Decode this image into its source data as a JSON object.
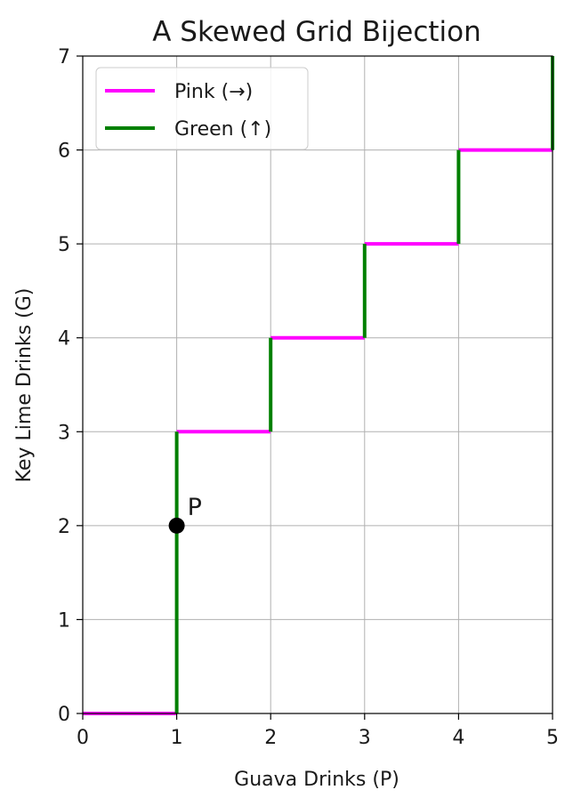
{
  "chart_data": {
    "type": "line",
    "title": "A Skewed Grid Bijection",
    "xlabel": "Guava Drinks (P)",
    "ylabel": "Key Lime Drinks (G)",
    "xlim": [
      0,
      5
    ],
    "ylim": [
      0,
      7
    ],
    "xticks": [
      "0",
      "1",
      "2",
      "3",
      "4",
      "5"
    ],
    "yticks": [
      "0",
      "1",
      "2",
      "3",
      "4",
      "5",
      "6",
      "7"
    ],
    "grid": true,
    "legend_position": "top-left",
    "series": [
      {
        "name": "Pink (→)",
        "color": "#ff00ff",
        "segments": [
          [
            [
              0,
              0
            ],
            [
              1,
              0
            ]
          ],
          [
            [
              1,
              3
            ],
            [
              2,
              3
            ]
          ],
          [
            [
              2,
              4
            ],
            [
              3,
              4
            ]
          ],
          [
            [
              3,
              5
            ],
            [
              4,
              5
            ]
          ],
          [
            [
              4,
              6
            ],
            [
              5,
              6
            ]
          ]
        ]
      },
      {
        "name": "Green (↑)",
        "color": "#008000",
        "segments": [
          [
            [
              1,
              0
            ],
            [
              1,
              3
            ]
          ],
          [
            [
              2,
              3
            ],
            [
              2,
              4
            ]
          ],
          [
            [
              3,
              4
            ],
            [
              3,
              5
            ]
          ],
          [
            [
              4,
              5
            ],
            [
              4,
              6
            ]
          ],
          [
            [
              5,
              6
            ],
            [
              5,
              7
            ]
          ]
        ]
      }
    ],
    "annotations": [
      {
        "label": "P",
        "x": 1,
        "y": 2,
        "color": "#000000"
      }
    ]
  }
}
